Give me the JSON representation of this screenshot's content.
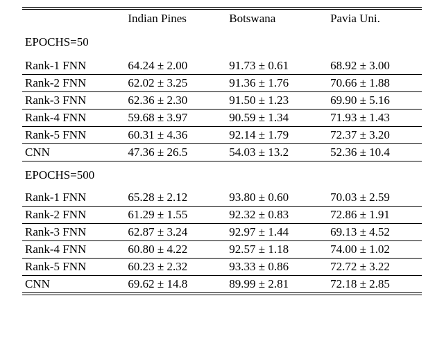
{
  "columns": [
    "",
    "Indian Pines",
    "Botswana",
    "Pavia Uni."
  ],
  "sections": [
    {
      "label": "EPOCHS=50",
      "rows": [
        {
          "label": "Rank-1 FNN",
          "values": [
            "64.24 ± 2.00",
            "91.73 ± 0.61",
            "68.92 ± 3.00"
          ]
        },
        {
          "label": "Rank-2 FNN",
          "values": [
            "62.02 ± 3.25",
            "91.36 ± 1.76",
            "70.66 ± 1.88"
          ]
        },
        {
          "label": "Rank-3 FNN",
          "values": [
            "62.36 ± 2.30",
            "91.50 ± 1.23",
            "69.90 ± 5.16"
          ]
        },
        {
          "label": "Rank-4 FNN",
          "values": [
            "59.68 ± 3.97",
            "90.59 ± 1.34",
            "71.93 ± 1.43"
          ]
        },
        {
          "label": "Rank-5 FNN",
          "values": [
            "60.31 ± 4.36",
            "92.14 ± 1.79",
            "72.37 ± 3.20"
          ]
        },
        {
          "label": "CNN",
          "values": [
            "47.36 ± 26.5",
            "54.03 ± 13.2",
            "52.36 ± 10.4"
          ]
        }
      ]
    },
    {
      "label": "EPOCHS=500",
      "rows": [
        {
          "label": "Rank-1 FNN",
          "values": [
            "65.28 ± 2.12",
            "93.80 ± 0.60",
            "70.03 ± 2.59"
          ]
        },
        {
          "label": "Rank-2 FNN",
          "values": [
            "61.29 ± 1.55",
            "92.32 ± 0.83",
            "72.86 ± 1.91"
          ]
        },
        {
          "label": "Rank-3 FNN",
          "values": [
            "62.87 ± 3.24",
            "92.97 ± 1.44",
            "69.13 ± 4.52"
          ]
        },
        {
          "label": "Rank-4 FNN",
          "values": [
            "60.80 ± 4.22",
            "92.57 ± 1.18",
            "74.00 ± 1.02"
          ]
        },
        {
          "label": "Rank-5 FNN",
          "values": [
            "60.23 ± 2.32",
            "93.33 ± 0.86",
            "72.72 ± 3.22"
          ]
        },
        {
          "label": "CNN",
          "values": [
            "69.62 ± 14.8",
            "89.99 ± 2.81",
            "72.18 ± 2.85"
          ]
        }
      ]
    }
  ]
}
